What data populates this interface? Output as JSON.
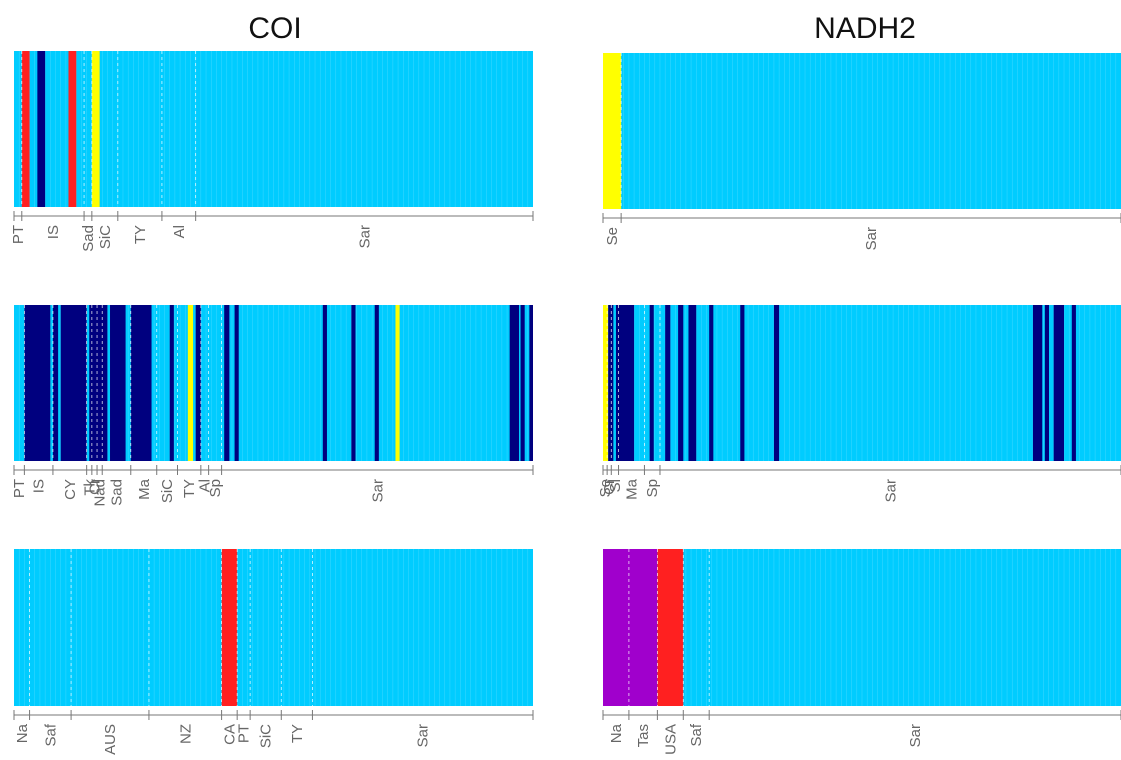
{
  "columns": [
    {
      "title": "COI"
    },
    {
      "title": "NADH2"
    }
  ],
  "colors": {
    "background": "#00CCFF",
    "red": "#FF2020",
    "navy": "#00007F",
    "yellow": "#FFFF00",
    "purple": "#A000CC",
    "separator": "#E6F7FF",
    "axis": "#777777",
    "tick_text": "#666666"
  },
  "chart_data": [
    {
      "type": "heatmap",
      "title": "COI",
      "n_bars": 100,
      "background_color": "#00CCFF",
      "bands": [
        {
          "from": 1.5,
          "to": 3.0,
          "color": "#FF2020"
        },
        {
          "from": 4.5,
          "to": 6.0,
          "color": "#00007F"
        },
        {
          "from": 10.5,
          "to": 12.0,
          "color": "#FF2020"
        },
        {
          "from": 15.0,
          "to": 16.5,
          "color": "#FFFF00"
        }
      ],
      "groups": [
        {
          "label": "PT",
          "from": 0,
          "to": 1.5
        },
        {
          "label": "IS",
          "from": 1.5,
          "to": 13.5
        },
        {
          "label": "Sad",
          "from": 13.5,
          "to": 15
        },
        {
          "label": "SiC",
          "from": 15,
          "to": 20
        },
        {
          "label": "TY",
          "from": 20,
          "to": 28.5
        },
        {
          "label": "Al",
          "from": 28.5,
          "to": 35
        },
        {
          "label": "Sar",
          "from": 35,
          "to": 100
        }
      ]
    },
    {
      "type": "heatmap",
      "title": "NADH2",
      "n_bars": 100,
      "background_color": "#00CCFF",
      "bands": [
        {
          "from": 0,
          "to": 3.5,
          "color": "#FFFF00"
        }
      ],
      "groups": [
        {
          "label": "Se",
          "from": 0,
          "to": 3.5
        },
        {
          "label": "Sar",
          "from": 3.5,
          "to": 100
        }
      ]
    },
    {
      "type": "heatmap",
      "n_bars": 100,
      "background_color": "#00CCFF",
      "bands": [
        {
          "from": 2,
          "to": 7,
          "color": "#00007F"
        },
        {
          "from": 7.5,
          "to": 8.5,
          "color": "#00007F"
        },
        {
          "from": 9,
          "to": 14,
          "color": "#00007F"
        },
        {
          "from": 14.5,
          "to": 18,
          "color": "#00007F"
        },
        {
          "from": 18.5,
          "to": 21.5,
          "color": "#00007F"
        },
        {
          "from": 22.5,
          "to": 26.5,
          "color": "#00007F"
        },
        {
          "from": 30,
          "to": 30.8,
          "color": "#00007F"
        },
        {
          "from": 33.5,
          "to": 34.5,
          "color": "#FFFF00"
        },
        {
          "from": 35,
          "to": 36,
          "color": "#00007F"
        },
        {
          "from": 40.5,
          "to": 41.5,
          "color": "#00007F"
        },
        {
          "from": 42.5,
          "to": 43.3,
          "color": "#00007F"
        },
        {
          "from": 59.5,
          "to": 60.3,
          "color": "#00007F"
        },
        {
          "from": 65,
          "to": 65.8,
          "color": "#00007F"
        },
        {
          "from": 69.5,
          "to": 70.3,
          "color": "#00007F"
        },
        {
          "from": 73.5,
          "to": 74.3,
          "color": "#FFFF00"
        },
        {
          "from": 95.5,
          "to": 97.3,
          "color": "#00007F"
        },
        {
          "from": 97.6,
          "to": 98.4,
          "color": "#00007F"
        },
        {
          "from": 99.3,
          "to": 100,
          "color": "#00007F"
        }
      ],
      "groups": [
        {
          "label": "PT",
          "from": 0,
          "to": 2
        },
        {
          "label": "IS",
          "from": 2,
          "to": 7.5
        },
        {
          "label": "CY",
          "from": 7.5,
          "to": 14
        },
        {
          "label": "Tk",
          "from": 14,
          "to": 15
        },
        {
          "label": "Cr",
          "from": 15,
          "to": 16
        },
        {
          "label": "Nad",
          "from": 16,
          "to": 17
        },
        {
          "label": "Sad",
          "from": 17,
          "to": 22.5
        },
        {
          "label": "Ma",
          "from": 22.5,
          "to": 27.5
        },
        {
          "label": "SiC",
          "from": 27.5,
          "to": 31.5
        },
        {
          "label": "TY",
          "from": 31.5,
          "to": 36
        },
        {
          "label": "Al",
          "from": 36,
          "to": 37.5
        },
        {
          "label": "Sp",
          "from": 37.5,
          "to": 40
        },
        {
          "label": "Sar",
          "from": 40,
          "to": 100
        }
      ]
    },
    {
      "type": "heatmap",
      "n_bars": 100,
      "background_color": "#00CCFF",
      "bands": [
        {
          "from": 0,
          "to": 1,
          "color": "#FFFF00"
        },
        {
          "from": 1,
          "to": 2,
          "color": "#00007F"
        },
        {
          "from": 2.5,
          "to": 6,
          "color": "#00007F"
        },
        {
          "from": 9,
          "to": 9.8,
          "color": "#00007F"
        },
        {
          "from": 12,
          "to": 13,
          "color": "#00007F"
        },
        {
          "from": 14.5,
          "to": 15.5,
          "color": "#00007F"
        },
        {
          "from": 16.5,
          "to": 18,
          "color": "#00007F"
        },
        {
          "from": 20.5,
          "to": 21.3,
          "color": "#00007F"
        },
        {
          "from": 26.5,
          "to": 27.3,
          "color": "#00007F"
        },
        {
          "from": 33,
          "to": 34,
          "color": "#00007F"
        },
        {
          "from": 83,
          "to": 84.8,
          "color": "#00007F"
        },
        {
          "from": 85.3,
          "to": 86.1,
          "color": "#00007F"
        },
        {
          "from": 87,
          "to": 89,
          "color": "#00007F"
        },
        {
          "from": 90.5,
          "to": 91.3,
          "color": "#00007F"
        }
      ],
      "groups": [
        {
          "label": "Se",
          "from": 0,
          "to": 0.8
        },
        {
          "label": "Cr",
          "from": 0.8,
          "to": 1.6
        },
        {
          "label": "Sl",
          "from": 1.6,
          "to": 3
        },
        {
          "label": "Ma",
          "from": 3,
          "to": 8
        },
        {
          "label": "Sp",
          "from": 8,
          "to": 11
        },
        {
          "label": "Sar",
          "from": 11,
          "to": 100
        }
      ]
    },
    {
      "type": "heatmap",
      "n_bars": 100,
      "background_color": "#00CCFF",
      "bands": [
        {
          "from": 40,
          "to": 43,
          "color": "#FF2020"
        }
      ],
      "groups": [
        {
          "label": "Na",
          "from": 0,
          "to": 3
        },
        {
          "label": "Saf",
          "from": 3,
          "to": 11
        },
        {
          "label": "AUS",
          "from": 11,
          "to": 26
        },
        {
          "label": "NZ",
          "from": 26,
          "to": 40
        },
        {
          "label": "CA",
          "from": 40,
          "to": 43
        },
        {
          "label": "PT",
          "from": 43,
          "to": 45.5
        },
        {
          "label": "SiC",
          "from": 45.5,
          "to": 51.5
        },
        {
          "label": "TY",
          "from": 51.5,
          "to": 57.5
        },
        {
          "label": "Sar",
          "from": 57.5,
          "to": 100
        }
      ]
    },
    {
      "type": "heatmap",
      "n_bars": 100,
      "background_color": "#00CCFF",
      "bands": [
        {
          "from": 0,
          "to": 10.5,
          "color": "#A000CC"
        },
        {
          "from": 10.5,
          "to": 15.5,
          "color": "#FF2020"
        }
      ],
      "groups": [
        {
          "label": "Na",
          "from": 0,
          "to": 5
        },
        {
          "label": "Tas",
          "from": 5,
          "to": 10.5
        },
        {
          "label": "USA",
          "from": 10.5,
          "to": 15.5
        },
        {
          "label": "Saf",
          "from": 15.5,
          "to": 20.5
        },
        {
          "label": "Sar",
          "from": 20.5,
          "to": 100
        }
      ]
    }
  ]
}
